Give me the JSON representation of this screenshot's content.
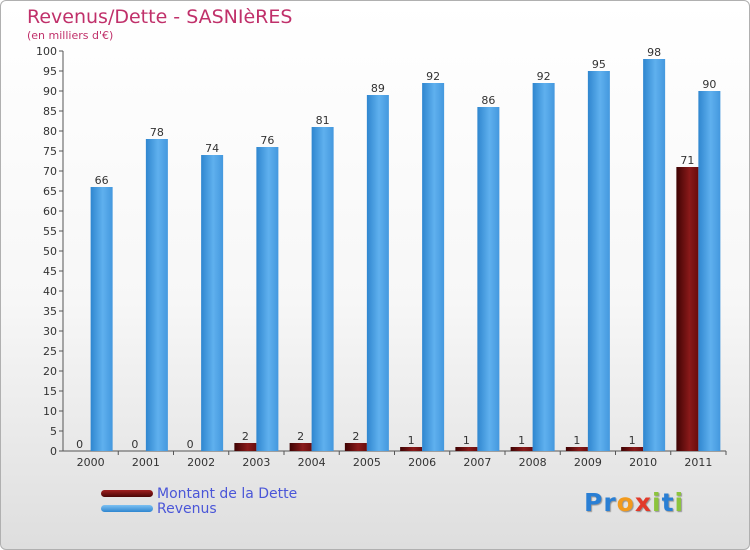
{
  "header": {
    "title": "Revenus/Dette - SASNIèRES",
    "subtitle": "(en milliers d'€)"
  },
  "colors": {
    "dette": "#7a1010",
    "revenus": "#4ea4e6",
    "title": "#c0306a",
    "legend_text": "#4a56d8"
  },
  "legend": {
    "items": [
      {
        "label": "Montant de la Dette",
        "color": "#7a1010"
      },
      {
        "label": "Revenus",
        "color": "#4ea4e6"
      }
    ]
  },
  "logo": {
    "text": "Proxiti",
    "letters": [
      {
        "ch": "P",
        "color": "#2a7fd4"
      },
      {
        "ch": "r",
        "color": "#2a7fd4"
      },
      {
        "ch": "o",
        "color": "#f29a1c"
      },
      {
        "ch": "x",
        "color": "#e23a2a"
      },
      {
        "ch": "i",
        "color": "#8cc43c"
      },
      {
        "ch": "t",
        "color": "#2a7fd4"
      },
      {
        "ch": "i",
        "color": "#8cc43c"
      }
    ]
  },
  "chart_data": {
    "type": "bar",
    "title": "Revenus/Dette - SASNIèRES",
    "subtitle": "(en milliers d'€)",
    "categories": [
      "2000",
      "2001",
      "2002",
      "2003",
      "2004",
      "2005",
      "2006",
      "2007",
      "2008",
      "2009",
      "2010",
      "2011"
    ],
    "series": [
      {
        "name": "Montant de la Dette",
        "color": "#7a1010",
        "values": [
          0,
          0,
          0,
          2,
          2,
          2,
          1,
          1,
          1,
          1,
          1,
          71
        ]
      },
      {
        "name": "Revenus",
        "color": "#4ea4e6",
        "values": [
          66,
          78,
          74,
          76,
          81,
          89,
          92,
          86,
          92,
          95,
          98,
          90
        ]
      }
    ],
    "ylim": [
      0,
      100
    ],
    "yticks": [
      0,
      5,
      10,
      15,
      20,
      25,
      30,
      35,
      40,
      45,
      50,
      55,
      60,
      65,
      70,
      75,
      80,
      85,
      90,
      95,
      100
    ],
    "grid": false,
    "legend_position": "bottom-left"
  }
}
